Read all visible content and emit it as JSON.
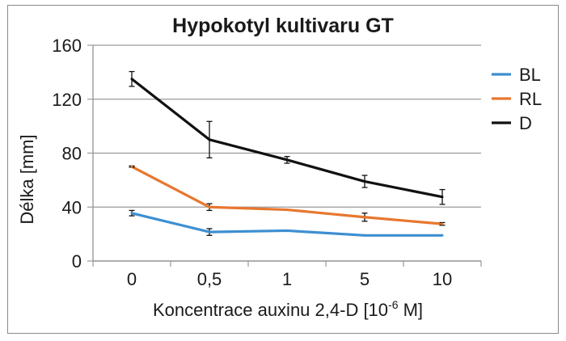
{
  "chart_data": {
    "type": "line",
    "title": "Hypokotyl kultivaru GT",
    "xlabel_main": "Koncentrace auxinu 2,4-D [10",
    "xlabel_sup": "-6",
    "xlabel_end": " M]",
    "ylabel": "Délka [mm]",
    "categories": [
      "0",
      "0,5",
      "1",
      "5",
      "10"
    ],
    "ylim": [
      0,
      160
    ],
    "yticks": [
      "0",
      "40",
      "80",
      "120",
      "160"
    ],
    "grid": true,
    "legend_position": "right",
    "series": [
      {
        "name": "BL",
        "color": "#3d8fd1",
        "values": [
          35.5,
          21.5,
          22.5,
          19,
          19
        ],
        "errors": [
          2,
          2.5,
          0,
          0,
          0
        ]
      },
      {
        "name": "RL",
        "color": "#e8772e",
        "values": [
          70,
          40,
          38,
          32.5,
          27.5
        ],
        "errors": [
          0.5,
          2.5,
          0,
          3,
          1
        ]
      },
      {
        "name": "D",
        "color": "#111111",
        "values": [
          135,
          90,
          75,
          59,
          47.5
        ],
        "errors": [
          5.5,
          13.5,
          2.5,
          4.5,
          5.5
        ]
      }
    ]
  }
}
